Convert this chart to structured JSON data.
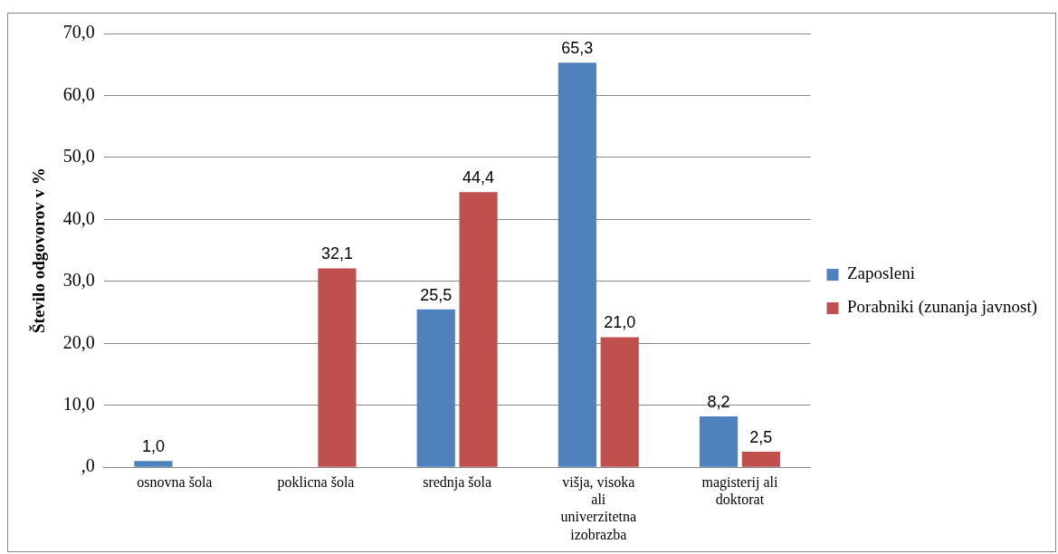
{
  "chart_data": {
    "type": "bar",
    "ylabel": "Število odgovorov v %",
    "categories": [
      "osnovna šola",
      "poklicna šola",
      "srednja šola",
      "višja, visoka ali univerzitetna izobrazba",
      "magisterij ali doktorat"
    ],
    "series": [
      {
        "name": "Zaposleni",
        "color": "#4f81bd",
        "values": [
          1.0,
          null,
          25.5,
          65.3,
          8.2
        ],
        "value_labels": [
          "1,0",
          null,
          "25,5",
          "65,3",
          "8,2"
        ]
      },
      {
        "name": "Porabniki (zunanja javnost)",
        "color": "#c0504d",
        "values": [
          null,
          32.1,
          44.4,
          21.0,
          2.5
        ],
        "value_labels": [
          null,
          "32,1",
          "44,4",
          "21,0",
          "2,5"
        ]
      }
    ],
    "ylim": [
      0,
      70
    ],
    "yticks": [
      {
        "value": 0,
        "label": ",0"
      },
      {
        "value": 10,
        "label": "10,0"
      },
      {
        "value": 20,
        "label": "20,0"
      },
      {
        "value": 30,
        "label": "30,0"
      },
      {
        "value": 40,
        "label": "40,0"
      },
      {
        "value": 50,
        "label": "50,0"
      },
      {
        "value": 60,
        "label": "60,0"
      },
      {
        "value": 70,
        "label": "70,0"
      }
    ],
    "grid": "y",
    "legend": "right"
  }
}
